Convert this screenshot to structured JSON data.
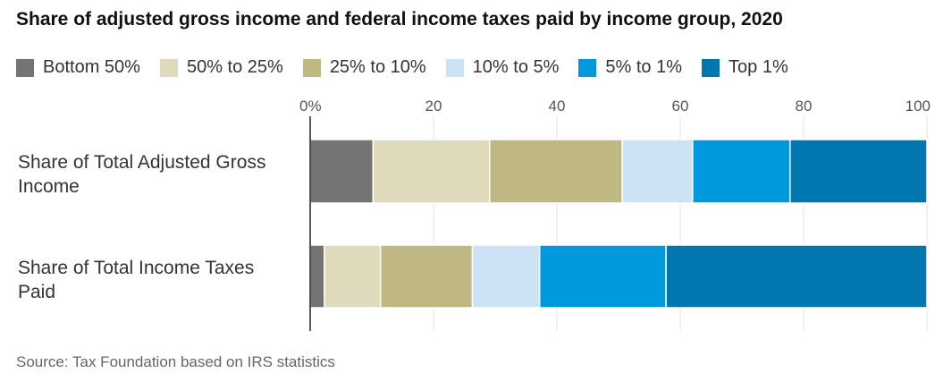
{
  "title": "Share of adjusted gross income and federal income taxes paid by income group, 2020",
  "source": "Source: Tax Foundation based on IRS statistics",
  "chart_data": {
    "type": "bar",
    "orientation": "horizontal",
    "stacked": true,
    "title": "Share of adjusted gross income and federal income taxes paid by income group, 2020",
    "categories": [
      "Share of Total Adjusted Gross Income",
      "Share of Total Income Taxes Paid"
    ],
    "category_lines": [
      [
        "Share of Total Adjusted Gross",
        "Income"
      ],
      [
        "Share of Total Income Taxes",
        "Paid"
      ]
    ],
    "series": [
      {
        "name": "Bottom 50%",
        "color": "#747474",
        "values": [
          10.2,
          2.3
        ]
      },
      {
        "name": "50% to 25%",
        "color": "#dfdabb",
        "values": [
          18.9,
          9.1
        ]
      },
      {
        "name": "25% to 10%",
        "color": "#c0b882",
        "values": [
          21.5,
          14.9
        ]
      },
      {
        "name": "10% to 5%",
        "color": "#cce3f6",
        "values": [
          11.4,
          10.9
        ]
      },
      {
        "name": "5% to 1%",
        "color": "#0099de",
        "values": [
          15.8,
          20.5
        ]
      },
      {
        "name": "Top 1%",
        "color": "#0077ae",
        "values": [
          22.2,
          42.3
        ]
      }
    ],
    "xlim": [
      0,
      100
    ],
    "xticks": [
      0,
      20,
      40,
      60,
      80,
      100
    ],
    "xtick_labels": [
      "0%",
      "20",
      "40",
      "60",
      "80",
      "100"
    ],
    "grid": true,
    "legend_position": "top"
  }
}
